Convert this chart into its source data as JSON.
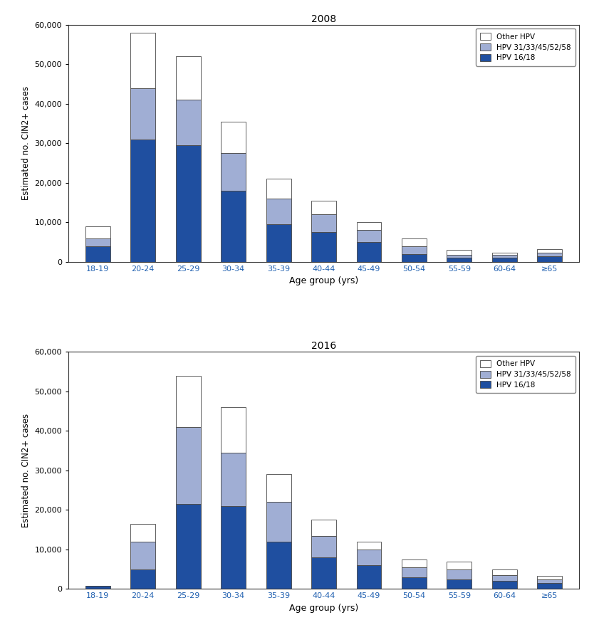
{
  "age_groups": [
    "18-19",
    "20-24",
    "25-29",
    "30-34",
    "35-39",
    "40-44",
    "45-49",
    "50-54",
    "55-59",
    "60-64",
    "≥65"
  ],
  "year2008": {
    "hpv_1618": [
      4000,
      31000,
      29500,
      18000,
      9500,
      7500,
      5000,
      2000,
      1000,
      1000,
      1500
    ],
    "hpv_3133": [
      2000,
      13000,
      11500,
      9500,
      6500,
      4500,
      3000,
      2000,
      800,
      700,
      800
    ],
    "other_hpv": [
      3000,
      14000,
      11000,
      8000,
      5000,
      3500,
      2000,
      2000,
      1200,
      700,
      900
    ]
  },
  "year2016": {
    "hpv_1618": [
      800,
      5000,
      21500,
      21000,
      12000,
      8000,
      6000,
      3000,
      2500,
      2000,
      1500
    ],
    "hpv_3133": [
      0,
      7000,
      19500,
      13500,
      10000,
      5500,
      4000,
      2500,
      2500,
      1500,
      1000
    ],
    "other_hpv": [
      0,
      4500,
      13000,
      11500,
      7000,
      4000,
      2000,
      2000,
      2000,
      1500,
      800
    ]
  },
  "colors": {
    "hpv_1618": "#1f4fa0",
    "hpv_3133": "#a0aed4",
    "other_hpv": "#ffffff"
  },
  "edge_color": "#444444",
  "xtick_color": "#2060b0",
  "ylabel": "Estimated no. CIN2+ cases",
  "xlabel": "Age group (yrs)",
  "title_2008": "2008",
  "title_2016": "2016",
  "ylim": [
    0,
    60000
  ],
  "yticks": [
    0,
    10000,
    20000,
    30000,
    40000,
    50000,
    60000
  ]
}
